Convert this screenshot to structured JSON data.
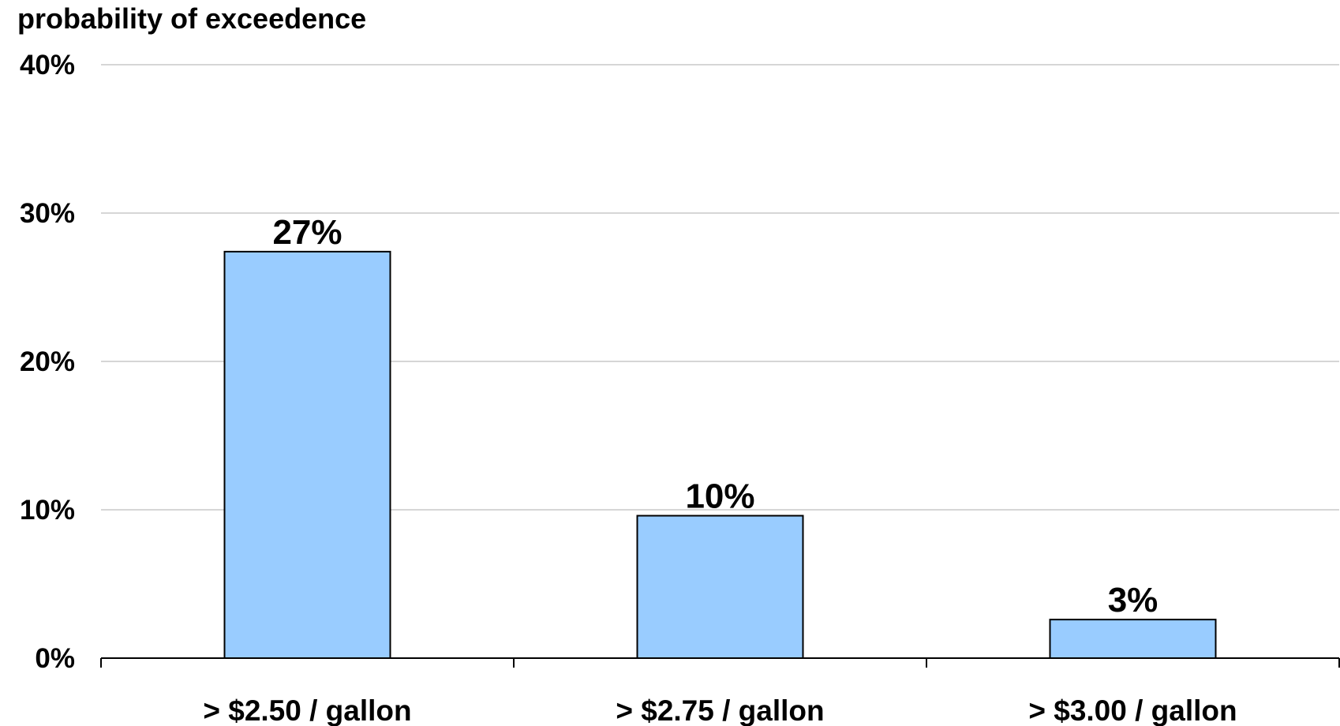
{
  "chart_data": {
    "type": "bar",
    "title": "",
    "ylabel": "probability of exceedence",
    "xlabel": "",
    "categories": [
      "> $2.50 / gallon",
      "> $2.75 / gallon",
      "> $3.00 / gallon"
    ],
    "values": [
      27.4,
      9.6,
      2.6
    ],
    "value_labels": [
      "27%",
      "10%",
      "3%"
    ],
    "ylim": [
      0,
      40
    ],
    "yticks": [
      0,
      10,
      20,
      30,
      40
    ],
    "ytick_labels": [
      "0%",
      "10%",
      "20%",
      "30%",
      "40%"
    ],
    "grid": true,
    "legend": "none",
    "bar_color": "#99ccff"
  }
}
